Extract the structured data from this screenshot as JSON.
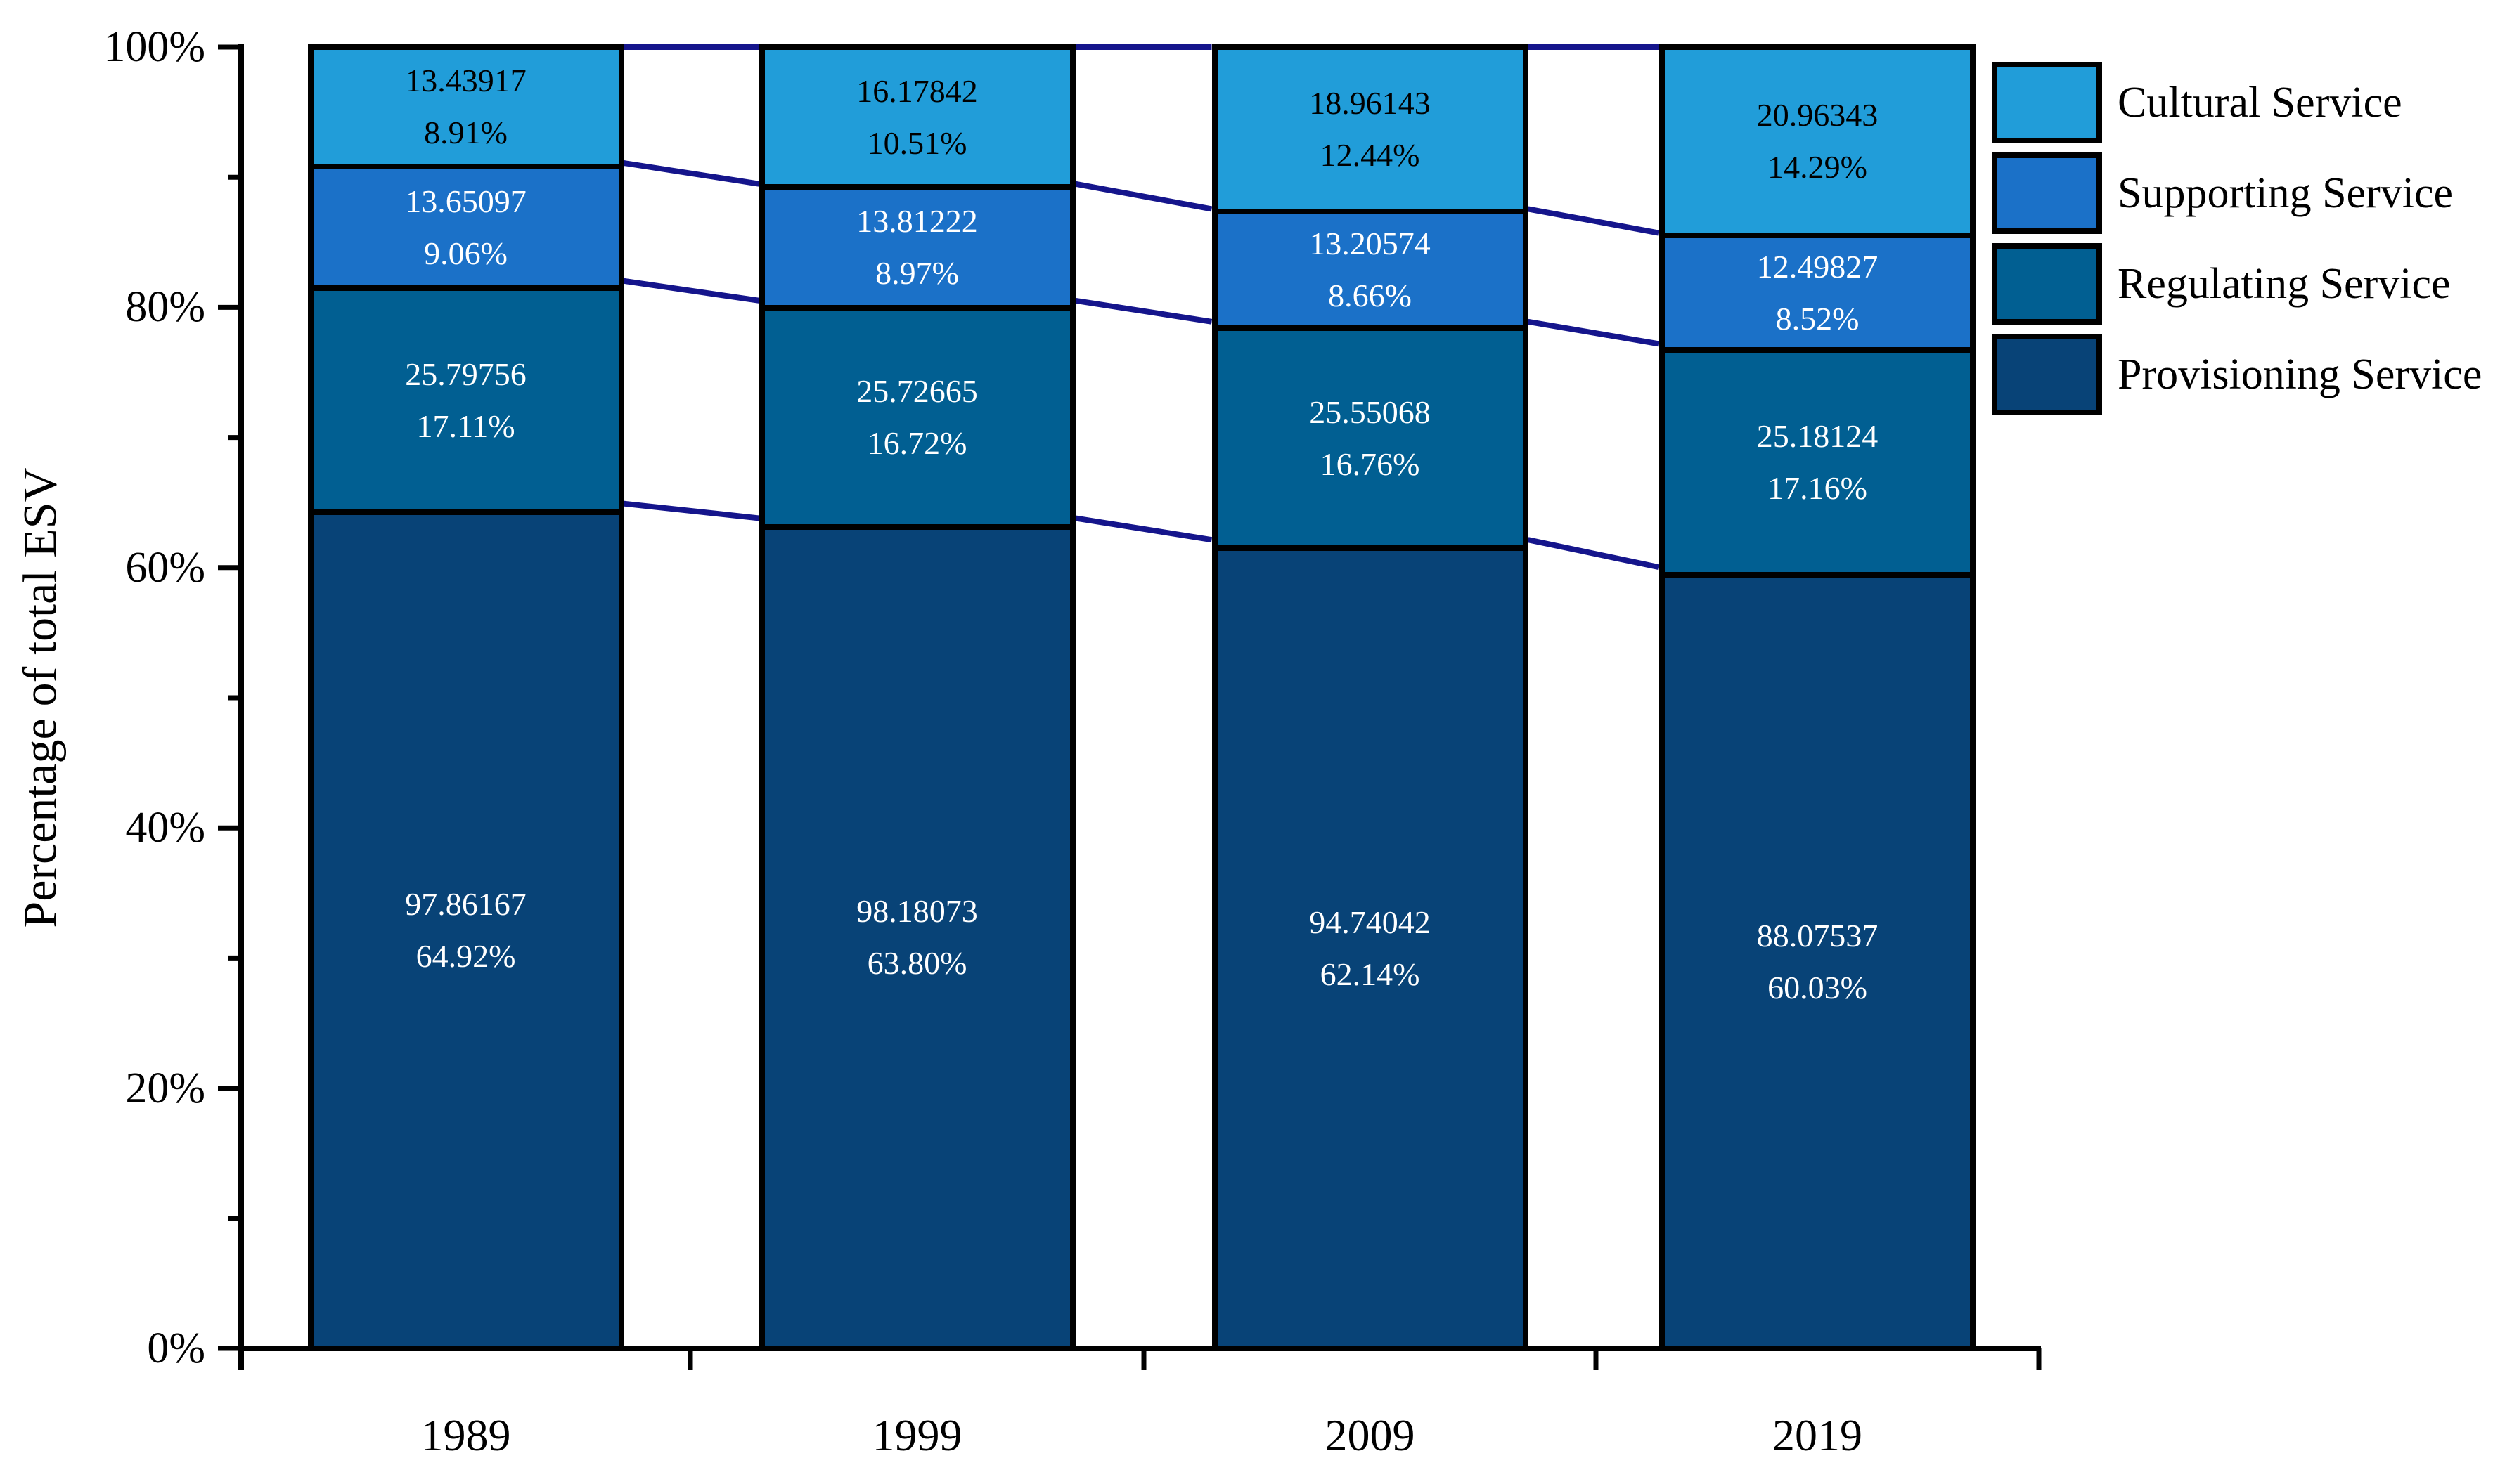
{
  "chart_data": {
    "type": "bar",
    "subtype": "stacked-100-percent",
    "title": "",
    "xlabel": "",
    "ylabel": "Percentage of total ESV",
    "categories": [
      "1989",
      "1999",
      "2009",
      "2019"
    ],
    "y_axis": {
      "range": [
        0,
        100
      ],
      "ticks": [
        "0%",
        "20%",
        "40%",
        "60%",
        "80%",
        "100%"
      ],
      "tick_values": [
        0,
        20,
        40,
        60,
        80,
        100
      ],
      "minor_tick_values": [
        10,
        30,
        50,
        70,
        90
      ]
    },
    "grid": false,
    "legend": {
      "position": "top-right",
      "items": [
        "Cultural Service",
        "Supporting Service",
        "Regulating Service",
        "Provisioning Service"
      ]
    },
    "series": [
      {
        "name": "Cultural Service",
        "color": "#219DD9",
        "label_color": "#000000",
        "values": [
          13.43917,
          16.17842,
          18.96143,
          20.96343
        ],
        "value_labels": [
          "13.43917",
          "16.17842",
          "18.96143",
          "20.96343"
        ],
        "percentages": [
          8.91,
          10.51,
          12.44,
          14.29
        ],
        "pct_labels": [
          "8.91%",
          "10.51%",
          "12.44%",
          "14.29%"
        ]
      },
      {
        "name": "Supporting Service",
        "color": "#1B71C8",
        "label_color": "#FFFFFF",
        "values": [
          13.65097,
          13.81222,
          13.20574,
          12.49827
        ],
        "value_labels": [
          "13.65097",
          "13.81222",
          "13.20574",
          "12.49827"
        ],
        "percentages": [
          9.06,
          8.97,
          8.66,
          8.52
        ],
        "pct_labels": [
          "9.06%",
          "8.97%",
          "8.66%",
          "8.52%"
        ]
      },
      {
        "name": "Regulating Service",
        "color": "#015F92",
        "label_color": "#FFFFFF",
        "values": [
          25.79756,
          25.72665,
          25.55068,
          25.18124
        ],
        "value_labels": [
          "25.79756",
          "25.72665",
          "25.55068",
          "25.18124"
        ],
        "percentages": [
          17.11,
          16.72,
          16.76,
          17.16
        ],
        "pct_labels": [
          "17.11%",
          "16.72%",
          "16.76%",
          "17.16%"
        ]
      },
      {
        "name": "Provisioning Service",
        "color": "#084377",
        "label_color": "#FFFFFF",
        "values": [
          97.86167,
          98.18073,
          94.74042,
          88.07537
        ],
        "value_labels": [
          "97.86167",
          "98.18073",
          "94.74042",
          "88.07537"
        ],
        "percentages": [
          64.92,
          63.8,
          62.14,
          60.03
        ],
        "pct_labels": [
          "64.92%",
          "63.80%",
          "62.14%",
          "60.03%"
        ]
      }
    ],
    "colors": {
      "axis": "#000000",
      "bar_border": "#000000",
      "connector_line": "#15158C",
      "tick_text": "#000000"
    }
  }
}
